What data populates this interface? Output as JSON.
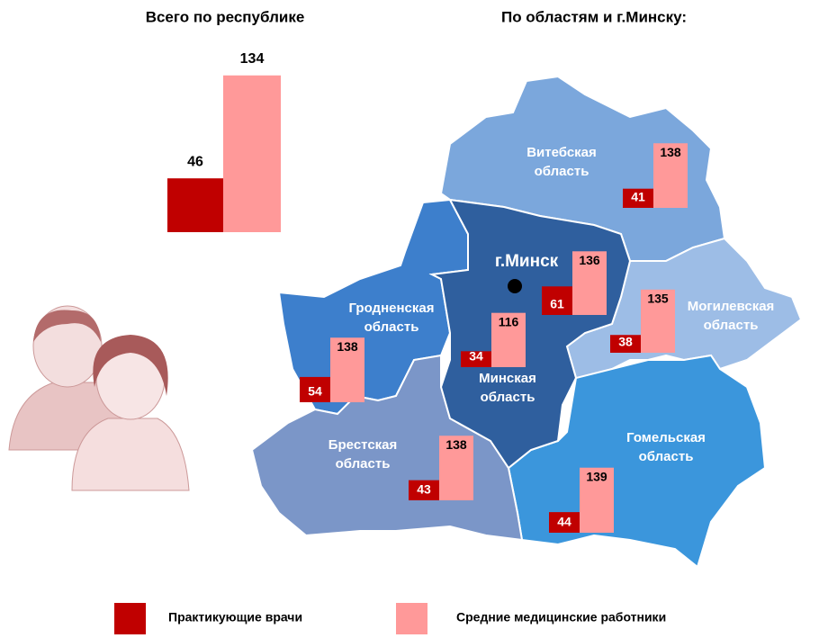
{
  "chart_data": [
    {
      "type": "bar",
      "title": "Всего по республике",
      "series": [
        {
          "name": "Практикующие врачи",
          "color": "#c00000",
          "values": [
            46
          ]
        },
        {
          "name": "Средние медицинские работники",
          "color": "#ff9999",
          "values": [
            134
          ]
        }
      ]
    },
    {
      "type": "map",
      "title": "По областям и г.Минску:",
      "categories": [
        "Витебская область",
        "г.Минск",
        "Могилевская область",
        "Гродненская область",
        "Минская область",
        "Брестская область",
        "Гомельская область"
      ],
      "series": [
        {
          "name": "Практикующие врачи",
          "color": "#c00000",
          "values": [
            41,
            61,
            38,
            54,
            34,
            43,
            44
          ]
        },
        {
          "name": "Средние медицинские работники",
          "color": "#ff9999",
          "values": [
            138,
            136,
            135,
            138,
            116,
            138,
            139
          ]
        }
      ]
    }
  ]
}
